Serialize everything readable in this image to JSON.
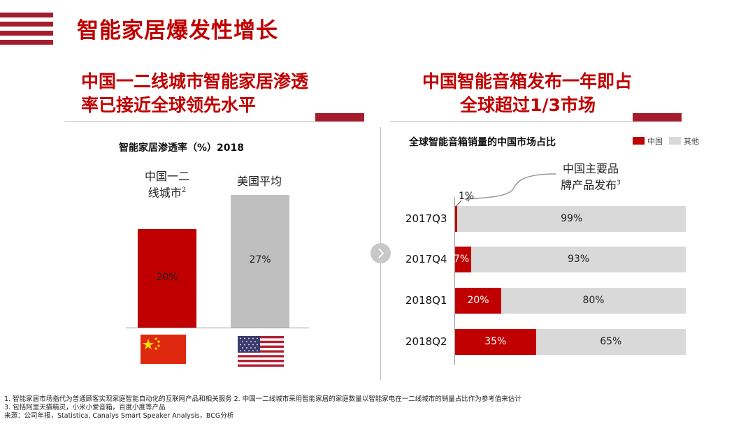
{
  "header": {
    "title": "智能家居爆发性增长",
    "accent_color": "#a51d2d"
  },
  "left": {
    "heading_line1": "中国一二线城市智能家居渗透",
    "heading_line2": "率已接近全球领先水平"
  },
  "right": {
    "heading_line1": "中国智能音箱发布一年即占",
    "heading_line2": "全球超过1/3市场"
  },
  "divider": {
    "icon": "chevron-right-icon"
  },
  "chart_data": [
    {
      "type": "bar",
      "title": "智能家居渗透率（%）2018",
      "categories": [
        "中国一二线城市2",
        "美国平均"
      ],
      "category_lines": [
        [
          "中国一二",
          "线城市"
        ],
        [
          "美国平均"
        ]
      ],
      "category_superscripts": [
        "2",
        ""
      ],
      "values": [
        20,
        27
      ],
      "value_labels": [
        "20%",
        "27%"
      ],
      "colors": [
        "#c00000",
        "#bfbfbf"
      ],
      "flags": [
        "china-flag-icon",
        "usa-flag-icon"
      ],
      "ylim": [
        0,
        27
      ],
      "xlabel": "",
      "ylabel": ""
    },
    {
      "type": "bar",
      "orientation": "horizontal-stacked-100",
      "title": "全球智能音箱销量的中国市场占比",
      "legend": [
        {
          "name": "中国",
          "color": "#c00000"
        },
        {
          "name": "其他",
          "color": "#d9d9d9"
        }
      ],
      "legend_position": "top-right",
      "categories": [
        "2017Q3",
        "2017Q4",
        "2018Q1",
        "2018Q2"
      ],
      "series": [
        {
          "name": "中国",
          "values": [
            1,
            7,
            20,
            35
          ],
          "labels": [
            "1%",
            "7%",
            "20%",
            "35%"
          ]
        },
        {
          "name": "其他",
          "values": [
            99,
            93,
            80,
            65
          ],
          "labels": [
            "99%",
            "93%",
            "80%",
            "65%"
          ]
        }
      ],
      "xlim": [
        0,
        100
      ],
      "annotation": {
        "text_line1": "中国主要品",
        "text_line2": "牌产品发布",
        "superscript": "3",
        "target": "2017Q3"
      }
    }
  ],
  "footnotes": {
    "line1": "1. 智能家居市场指代为普通顾客实现家庭智能自动化的互联网产品和相关服务   2. 中国一二线城市采用智能家居的家庭数量以智能家电在一二线城市的销量占比作为参考值来估计",
    "line2": "3. 包括阿里天猫精灵，小米小爱音箱，百度小度等产品",
    "line3": "来源：公司年报，Statistica, Canalys Smart Speaker Analysis，BCG分析"
  }
}
